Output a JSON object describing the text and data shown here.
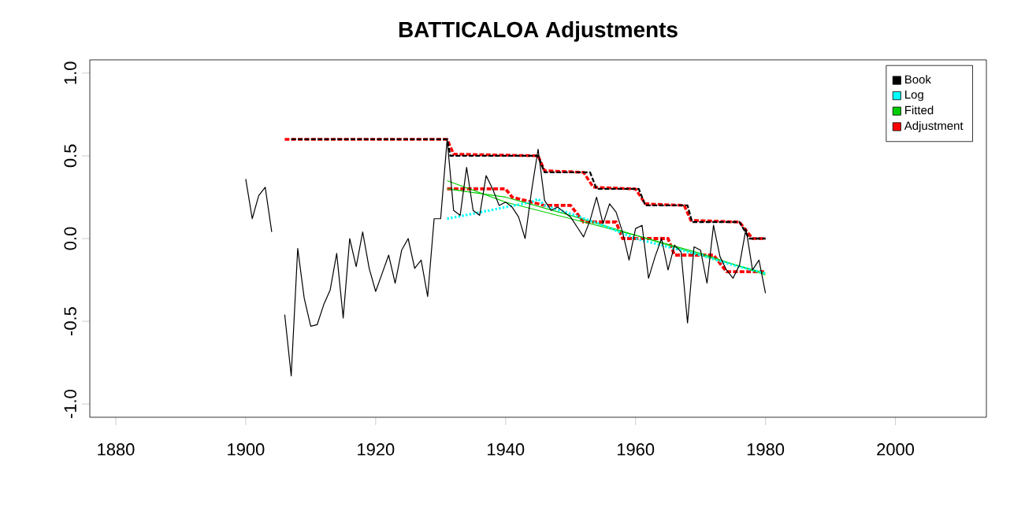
{
  "chart_data": {
    "type": "line",
    "title": "BATTICALOA Adjustments",
    "xlim": [
      1876,
      2014
    ],
    "ylim": [
      -1.08,
      1.08
    ],
    "xticks": [
      1880,
      1900,
      1920,
      1940,
      1960,
      1980,
      2000
    ],
    "yticks": [
      {
        "value": -1,
        "label": "-1.0"
      },
      {
        "value": -0.5,
        "label": "-0.5"
      },
      {
        "value": 0,
        "label": "0.0"
      },
      {
        "value": 0.5,
        "label": "0.5"
      },
      {
        "value": 1,
        "label": "1.0"
      }
    ],
    "grid": false,
    "legend": "top right",
    "marker": "none",
    "series": [
      {
        "color": "#000000",
        "line_style": "solid",
        "x": [
          1900,
          1901,
          1902,
          1903,
          1904,
          1905,
          1906,
          1907,
          1908,
          1909,
          1910,
          1911,
          1912,
          1913,
          1914,
          1915,
          1916,
          1917,
          1918,
          1919,
          1920,
          1921,
          1922,
          1923,
          1924,
          1925,
          1926,
          1927,
          1928,
          1929,
          1930,
          1931,
          1932,
          1933,
          1934,
          1935,
          1936,
          1937,
          1938,
          1939,
          1940,
          1941,
          1942,
          1943,
          1944,
          1945,
          1946,
          1947,
          1948,
          1949,
          1950,
          1951,
          1952,
          1953,
          1954,
          1955,
          1956,
          1957,
          1958,
          1959,
          1960,
          1961,
          1962,
          1963,
          1964,
          1965,
          1966,
          1967,
          1968,
          1969,
          1970,
          1971,
          1972,
          1973,
          1974,
          1975,
          1976,
          1977,
          1978,
          1979,
          1980
        ],
        "values": [
          0.36,
          0.12,
          0.26,
          0.31,
          0.04,
          null,
          -0.46,
          -0.83,
          -0.06,
          -0.36,
          -0.53,
          -0.52,
          -0.4,
          -0.31,
          -0.09,
          -0.48,
          0.0,
          -0.17,
          0.04,
          -0.18,
          -0.32,
          -0.21,
          -0.1,
          -0.27,
          -0.07,
          0.0,
          -0.18,
          -0.13,
          -0.35,
          0.12,
          0.12,
          0.6,
          0.17,
          0.14,
          0.43,
          0.17,
          0.14,
          0.38,
          0.3,
          0.2,
          0.22,
          0.19,
          0.13,
          0.0,
          0.29,
          0.54,
          0.23,
          0.17,
          0.19,
          0.16,
          0.13,
          0.07,
          0.01,
          0.11,
          0.25,
          0.09,
          0.21,
          0.16,
          0.04,
          -0.13,
          0.06,
          0.08,
          -0.24,
          -0.11,
          0.0,
          -0.19,
          -0.04,
          -0.08,
          -0.51,
          -0.05,
          -0.07,
          -0.27,
          0.08,
          -0.11,
          -0.19,
          -0.24,
          -0.16,
          0.06,
          -0.19,
          -0.13,
          -0.33
        ]
      },
      {
        "name": "Book",
        "color": "#000000",
        "line_style": "dashed",
        "x": [
          1907,
          1931,
          1931.5,
          1945,
          1946,
          1953,
          1954,
          1960.5,
          1961.5,
          1968,
          1968.7,
          1976,
          1977.5,
          1980
        ],
        "values": [
          0.6,
          0.6,
          0.5,
          0.5,
          0.4,
          0.4,
          0.3,
          0.3,
          0.2,
          0.2,
          0.1,
          0.1,
          0.0,
          0.0
        ]
      },
      {
        "name": "Log",
        "color": "#00ffff",
        "line_style": "dotted",
        "x": [
          1931,
          1935,
          1940,
          1944,
          1945,
          1946,
          1950,
          1955,
          1960,
          1965,
          1970,
          1975,
          1980
        ],
        "values": [
          0.12,
          0.15,
          0.19,
          0.22,
          0.24,
          0.2,
          0.15,
          0.08,
          0.0,
          -0.05,
          -0.1,
          -0.16,
          -0.21
        ]
      },
      {
        "name": "Fitted",
        "color": "#00cc00",
        "line_style": "solid",
        "x": [
          1931,
          1940,
          1950,
          1960,
          1970,
          1980
        ],
        "values": [
          0.35,
          0.22,
          0.12,
          0.02,
          -0.09,
          -0.22
        ]
      },
      {
        "color": "#00cc00",
        "line_style": "solid",
        "x": [
          1931,
          1940,
          1950,
          1960,
          1970,
          1980
        ],
        "values": [
          0.3,
          0.25,
          0.14,
          0.02,
          -0.1,
          -0.21
        ]
      },
      {
        "name": "Adjustment",
        "color": "#ff0000",
        "line_style": "dashed",
        "x": [
          1906,
          1931,
          1932,
          1945,
          1946,
          1952,
          1953.5,
          1960,
          1961.5,
          1967.5,
          1968.5,
          1976,
          1977,
          1978,
          1980
        ],
        "values": [
          0.6,
          0.6,
          0.51,
          0.5,
          0.41,
          0.4,
          0.31,
          0.3,
          0.21,
          0.2,
          0.11,
          0.1,
          0.05,
          0.0,
          0.0
        ]
      },
      {
        "color": "#ff0000",
        "line_style": "dashed",
        "x": [
          1931,
          1940,
          1941,
          1946,
          1950,
          1951,
          1952,
          1957,
          1958,
          1965,
          1966,
          1972,
          1973,
          1974,
          1980
        ],
        "values": [
          0.3,
          0.3,
          0.25,
          0.2,
          0.2,
          0.15,
          0.1,
          0.1,
          0.0,
          0.0,
          -0.1,
          -0.1,
          -0.15,
          -0.2,
          -0.2
        ]
      }
    ]
  }
}
